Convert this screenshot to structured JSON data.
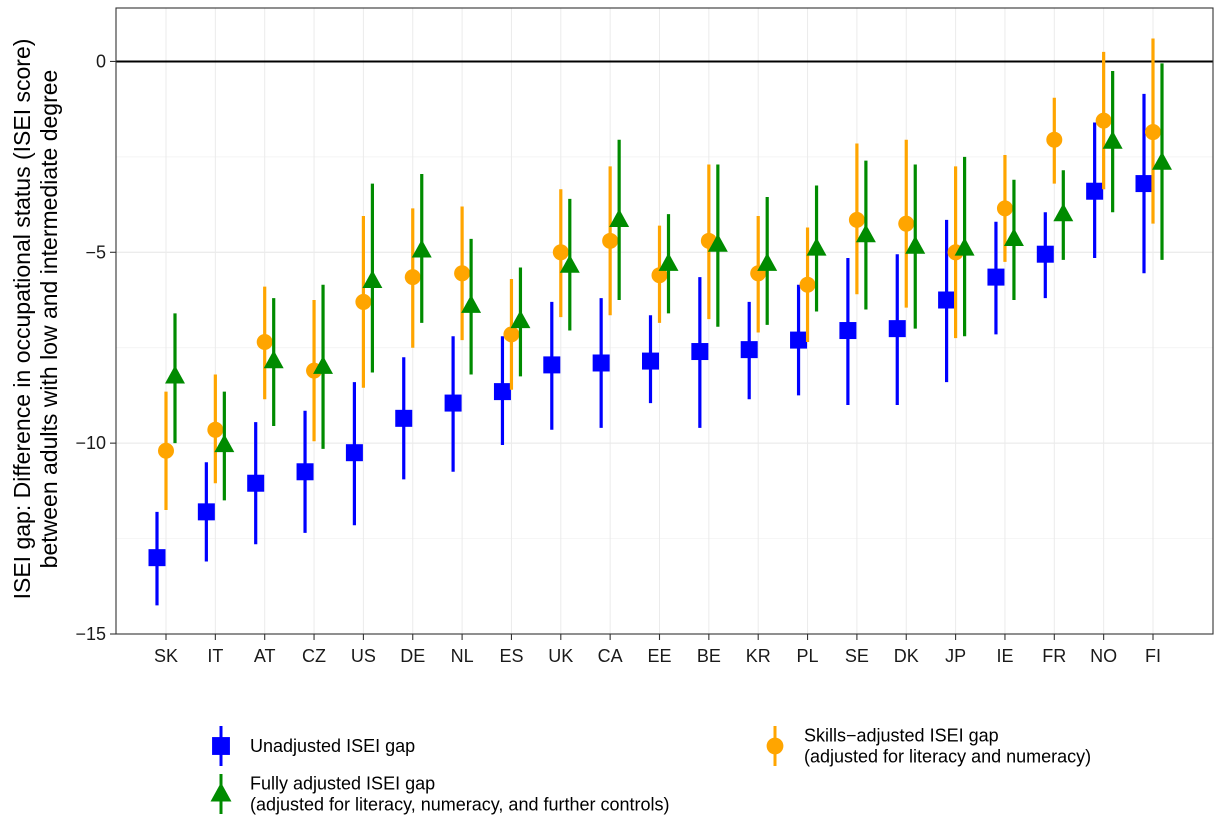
{
  "chart_data": {
    "type": "scatter",
    "subtype": "point-range",
    "ylabel_lines": [
      "ISEI gap: Difference in occupational status (ISEI score)",
      "between adults with low and intermediate degree"
    ],
    "xlabel": "",
    "ylim": [
      -15,
      1.4
    ],
    "yticks": [
      0,
      -5,
      -10,
      -15
    ],
    "ytick_labels": [
      "0",
      "−5",
      "−10",
      "−15"
    ],
    "reference_line": 0,
    "grid": true,
    "legend_position": "bottom",
    "categories": [
      "SK",
      "IT",
      "AT",
      "CZ",
      "US",
      "DE",
      "NL",
      "ES",
      "UK",
      "CA",
      "EE",
      "BE",
      "KR",
      "PL",
      "SE",
      "DK",
      "JP",
      "IE",
      "FR",
      "NO",
      "FI"
    ],
    "series": [
      {
        "key": "unadjusted",
        "name": "Unadjusted ISEI gap",
        "name_lines": [
          "Unadjusted ISEI gap"
        ],
        "color": "#0000ff",
        "marker": "square",
        "values": [
          -13.0,
          -11.8,
          -11.05,
          -10.75,
          -10.25,
          -9.35,
          -8.95,
          -8.65,
          -7.95,
          -7.9,
          -7.85,
          -7.6,
          -7.55,
          -7.3,
          -7.05,
          -7.0,
          -6.25,
          -5.65,
          -5.05,
          -3.4,
          -3.2
        ],
        "lower": [
          -14.25,
          -13.1,
          -12.65,
          -12.35,
          -12.15,
          -10.95,
          -10.75,
          -10.05,
          -9.65,
          -9.6,
          -8.95,
          -9.6,
          -8.85,
          -8.75,
          -9.0,
          -9.0,
          -8.4,
          -7.15,
          -6.2,
          -5.15,
          -5.55
        ],
        "upper": [
          -11.8,
          -10.5,
          -9.45,
          -9.15,
          -8.4,
          -7.75,
          -7.2,
          -7.2,
          -6.3,
          -6.2,
          -6.65,
          -5.65,
          -6.3,
          -5.85,
          -5.15,
          -5.05,
          -4.15,
          -4.2,
          -3.95,
          -1.6,
          -0.85
        ]
      },
      {
        "key": "skills",
        "name": "Skills−adjusted ISEI gap (adjusted for literacy and numeracy)",
        "name_lines": [
          "Skills−adjusted ISEI gap",
          "(adjusted for literacy and numeracy)"
        ],
        "color": "#ffa500",
        "marker": "circle",
        "values": [
          -10.2,
          -9.65,
          -7.35,
          -8.1,
          -6.3,
          -5.65,
          -5.55,
          -7.15,
          -5.0,
          -4.7,
          -5.6,
          -4.7,
          -5.55,
          -5.85,
          -4.15,
          -4.25,
          -5.0,
          -3.85,
          -2.05,
          -1.55,
          -1.85
        ],
        "lower": [
          -11.75,
          -11.05,
          -8.85,
          -9.95,
          -8.55,
          -7.5,
          -7.3,
          -8.6,
          -6.7,
          -6.65,
          -6.85,
          -6.75,
          -7.1,
          -7.35,
          -6.1,
          -6.45,
          -7.25,
          -5.25,
          -3.2,
          -3.35,
          -4.25
        ],
        "upper": [
          -8.65,
          -8.2,
          -5.9,
          -6.25,
          -4.05,
          -3.85,
          -3.8,
          -5.7,
          -3.35,
          -2.75,
          -4.3,
          -2.7,
          -4.05,
          -4.35,
          -2.15,
          -2.05,
          -2.75,
          -2.45,
          -0.95,
          0.25,
          0.6
        ]
      },
      {
        "key": "full",
        "name": "Fully adjusted ISEI gap (adjusted for literacy, numeracy, and further controls)",
        "name_lines": [
          "Fully adjusted ISEI gap",
          "(adjusted for literacy, numeracy, and further controls)"
        ],
        "color": "#008b00",
        "marker": "triangle",
        "values": [
          -8.25,
          -10.05,
          -7.85,
          -8.0,
          -5.75,
          -4.95,
          -6.4,
          -6.8,
          -5.35,
          -4.15,
          -5.3,
          -4.8,
          -5.3,
          -4.9,
          -4.55,
          -4.85,
          -4.9,
          -4.65,
          -4.0,
          -2.1,
          -2.65
        ],
        "lower": [
          -10.0,
          -11.5,
          -9.55,
          -10.15,
          -8.15,
          -6.85,
          -8.2,
          -8.25,
          -7.05,
          -6.25,
          -6.6,
          -6.95,
          -6.9,
          -6.55,
          -6.5,
          -7.0,
          -7.2,
          -6.25,
          -5.2,
          -3.95,
          -5.2
        ],
        "upper": [
          -6.6,
          -8.65,
          -6.2,
          -5.85,
          -3.2,
          -2.95,
          -4.65,
          -5.4,
          -3.6,
          -2.05,
          -4.0,
          -2.7,
          -3.55,
          -3.25,
          -2.6,
          -2.7,
          -2.5,
          -3.1,
          -2.85,
          -0.25,
          -0.05
        ]
      }
    ]
  }
}
